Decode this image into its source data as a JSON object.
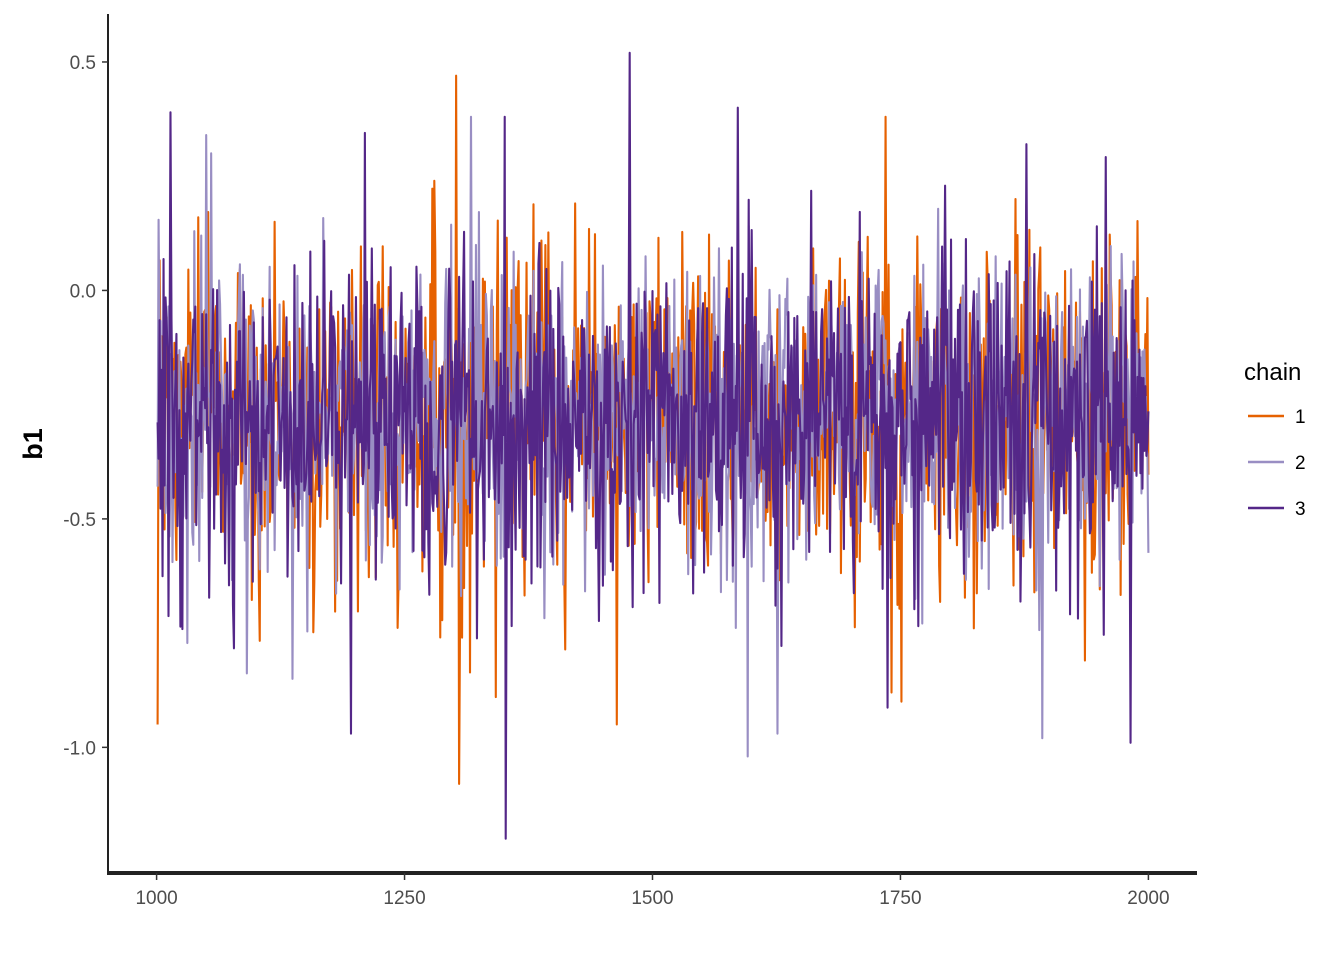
{
  "chart_data": {
    "type": "line",
    "ylabel": "b1",
    "xlabel": "",
    "xlim": [
      951,
      2049
    ],
    "ylim": [
      -1.275,
      0.605
    ],
    "x_ticks": [
      1000,
      1250,
      1500,
      1750,
      2000
    ],
    "x_tick_labels": [
      "1000",
      "1250",
      "1500",
      "1750",
      "2000"
    ],
    "y_ticks": [
      0.5,
      0.0,
      -0.5,
      -1.0
    ],
    "y_tick_labels": [
      "0.5",
      "0.0",
      "-0.5",
      "-1.0"
    ],
    "grid": false,
    "legend": {
      "title": "chain",
      "position": "right"
    },
    "x_start": 1001,
    "x_end": 2000,
    "series": [
      {
        "name": "1",
        "color": "#e66101",
        "summary": {
          "center": -0.27,
          "spread": 0.18,
          "min": -1.08,
          "max": 0.47
        },
        "extremes": [
          {
            "x": 1001,
            "y": -0.95
          },
          {
            "x": 1042,
            "y": 0.16
          },
          {
            "x": 1280,
            "y": 0.24
          },
          {
            "x": 1302,
            "y": 0.47
          },
          {
            "x": 1305,
            "y": -1.08
          },
          {
            "x": 1342,
            "y": -0.89
          },
          {
            "x": 1464,
            "y": -0.95
          },
          {
            "x": 1735,
            "y": 0.38
          },
          {
            "x": 1741,
            "y": -0.88
          },
          {
            "x": 1751,
            "y": -0.9
          },
          {
            "x": 1866,
            "y": 0.2
          },
          {
            "x": 1936,
            "y": -0.81
          }
        ]
      },
      {
        "name": "2",
        "color": "#998ec3",
        "summary": {
          "center": -0.28,
          "spread": 0.17,
          "min": -1.02,
          "max": 0.38
        },
        "extremes": [
          {
            "x": 1050,
            "y": 0.34
          },
          {
            "x": 1055,
            "y": 0.3
          },
          {
            "x": 1137,
            "y": -0.85
          },
          {
            "x": 1317,
            "y": 0.38
          },
          {
            "x": 1596,
            "y": -1.02
          },
          {
            "x": 1626,
            "y": -0.97
          },
          {
            "x": 1893,
            "y": -0.98
          },
          {
            "x": 1973,
            "y": 0.08
          }
        ]
      },
      {
        "name": "3",
        "color": "#542788",
        "summary": {
          "center": -0.29,
          "spread": 0.18,
          "min": -1.2,
          "max": 0.52
        },
        "extremes": [
          {
            "x": 1014,
            "y": 0.39
          },
          {
            "x": 1196,
            "y": -0.97
          },
          {
            "x": 1351,
            "y": 0.38
          },
          {
            "x": 1352,
            "y": -1.2
          },
          {
            "x": 1477,
            "y": 0.52
          },
          {
            "x": 1586,
            "y": 0.4
          },
          {
            "x": 1877,
            "y": 0.32
          },
          {
            "x": 1982,
            "y": -0.99
          }
        ]
      }
    ]
  }
}
